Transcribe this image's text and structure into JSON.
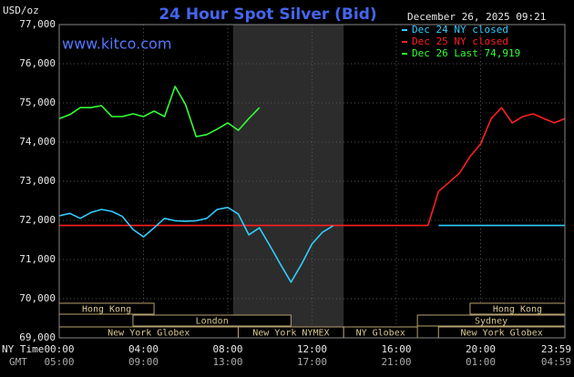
{
  "chart_data": {
    "type": "line",
    "title": "24 Hour Spot Silver (Bid)",
    "unit_label": "USD/oz",
    "timestamp": "December 26, 2025 09:21",
    "watermark": "www.kitco.com",
    "x_row_labels": [
      "NY Time",
      "GMT"
    ],
    "x": [
      0,
      0.5,
      1,
      1.5,
      2,
      2.5,
      3,
      3.5,
      4,
      4.5,
      5,
      5.5,
      6,
      6.5,
      7,
      7.5,
      8,
      8.5,
      9,
      9.5,
      10,
      10.5,
      11,
      11.5,
      12,
      12.5,
      13,
      13.5,
      14,
      14.5,
      15,
      15.5,
      16,
      16.5,
      17,
      17.5,
      18,
      18.5,
      19,
      19.5,
      20,
      20.5,
      21,
      21.5,
      22,
      22.5,
      23,
      23.5,
      24
    ],
    "xlim": [
      0,
      24
    ],
    "xticks": [
      {
        "value": 0,
        "label": "00:00"
      },
      {
        "value": 4,
        "label": "04:00"
      },
      {
        "value": 8,
        "label": "08:00"
      },
      {
        "value": 12,
        "label": "12:00"
      },
      {
        "value": 16,
        "label": "16:00"
      },
      {
        "value": 20,
        "label": "20:00"
      },
      {
        "value": 24,
        "label": "23:59"
      }
    ],
    "gmt_tick_labels": [
      "05:00",
      "09:00",
      "13:00",
      "17:00",
      "21:00",
      "01:00",
      "04:59"
    ],
    "ylim": [
      69000,
      77000
    ],
    "yticks": [
      {
        "value": 69000,
        "label": "69,000"
      },
      {
        "value": 70000,
        "label": "70,000"
      },
      {
        "value": 71000,
        "label": "71,000"
      },
      {
        "value": 72000,
        "label": "72,000"
      },
      {
        "value": 73000,
        "label": "73,000"
      },
      {
        "value": 74000,
        "label": "74,000"
      },
      {
        "value": 75000,
        "label": "75,000"
      },
      {
        "value": 76000,
        "label": "76,000"
      },
      {
        "value": 77000,
        "label": "77,000"
      }
    ],
    "grid": true,
    "shaded_range": [
      8.25,
      13.5
    ],
    "series": [
      {
        "name": "Dec 24 NY closed",
        "color": "#33ccff",
        "values": [
          72116,
          72180,
          72050,
          72200,
          72280,
          72230,
          72100,
          71770,
          71580,
          71810,
          72050,
          71990,
          71980,
          71990,
          72050,
          72280,
          72330,
          72160,
          71630,
          71810,
          71350,
          70880,
          70420,
          70880,
          71400,
          71700,
          71860,
          null,
          null,
          null,
          null,
          null,
          null,
          null,
          null,
          null,
          71870,
          71870,
          71870,
          71870,
          71870,
          71870,
          71870,
          71870,
          71870,
          71870,
          71870,
          71870,
          71870
        ]
      },
      {
        "name": "Dec 25 NY closed",
        "color": "#ff2020",
        "values": [
          71870,
          71870,
          71870,
          71870,
          71870,
          71870,
          71870,
          71870,
          71870,
          71870,
          71870,
          71870,
          71870,
          71870,
          71870,
          71870,
          71870,
          71870,
          71870,
          71870,
          71870,
          71870,
          71870,
          71870,
          71870,
          71870,
          71870,
          71870,
          71870,
          71870,
          71870,
          71870,
          71870,
          71870,
          71870,
          71870,
          72740,
          72970,
          73210,
          73630,
          73950,
          74600,
          74880,
          74490,
          74650,
          74720,
          74600,
          74490,
          74600
        ]
      },
      {
        "name": "Dec 26 Last 74,919",
        "color": "#33ff33",
        "values": [
          74600,
          74700,
          74880,
          74880,
          74930,
          74650,
          74650,
          74720,
          74650,
          74790,
          74650,
          75420,
          74950,
          74140,
          74190,
          74330,
          74490,
          74300,
          74600,
          74880,
          null,
          null,
          null,
          null,
          null,
          null,
          null,
          null,
          null,
          null,
          null,
          null,
          null,
          null,
          null,
          null,
          null,
          null,
          null,
          null,
          null,
          null,
          null,
          null,
          null,
          null,
          null,
          null,
          null
        ]
      }
    ],
    "sessions": [
      {
        "label": "Hong Kong",
        "row": 0,
        "start": 0,
        "end": 4.5
      },
      {
        "label": "Hong Kong",
        "row": 0,
        "start": 19.5,
        "end": 24
      },
      {
        "label": "London",
        "row": 1,
        "start": 3.5,
        "end": 11
      },
      {
        "label": "Sydney",
        "row": 1,
        "start": 17,
        "end": 24
      },
      {
        "label": "New York Globex",
        "row": 2,
        "start": 0,
        "end": 8.5
      },
      {
        "label": "New York NYMEX",
        "row": 2,
        "start": 8.5,
        "end": 13.5
      },
      {
        "label": "NY Globex",
        "row": 2,
        "start": 13.5,
        "end": 17
      },
      {
        "label": "New York Globex",
        "row": 2,
        "start": 18,
        "end": 24
      }
    ]
  }
}
